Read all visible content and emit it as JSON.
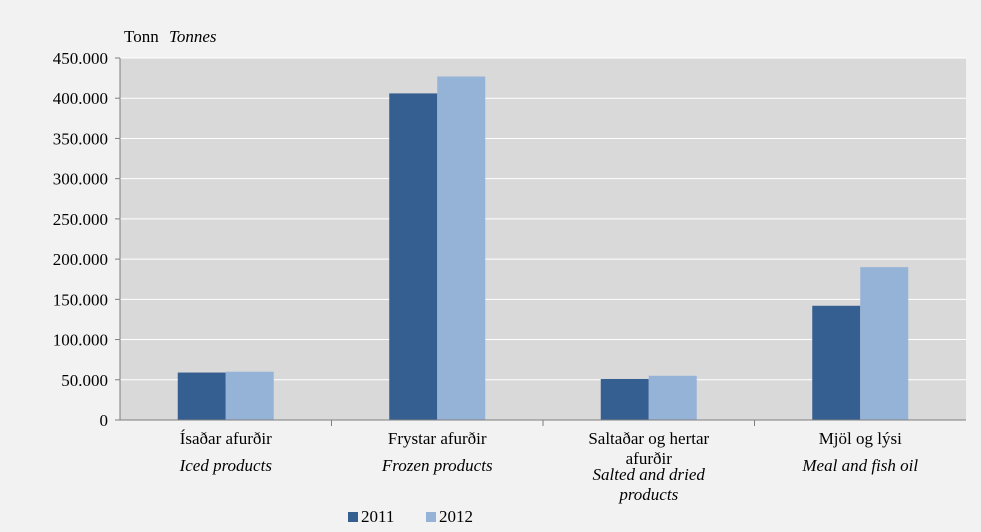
{
  "chart_data": {
    "type": "bar",
    "unit_label": {
      "is": "Tonn",
      "en": "Tonnes"
    },
    "categories": [
      {
        "is": "Ísaðar afurðir",
        "en": "Iced products"
      },
      {
        "is": "Frystar afurðir",
        "en": "Frozen products"
      },
      {
        "is": [
          "Saltaðar og hertar",
          "afurðir"
        ],
        "en": [
          "Salted and dried",
          "products"
        ]
      },
      {
        "is": "Mjöl og lýsi",
        "en": "Meal and fish oil"
      }
    ],
    "series": [
      {
        "name": "2011",
        "color": "#365f91",
        "values": [
          59000,
          406000,
          51000,
          142000
        ]
      },
      {
        "name": "2012",
        "color": "#95b3d7",
        "values": [
          60000,
          427000,
          55000,
          190000
        ]
      }
    ],
    "ylim": [
      0,
      450000
    ],
    "yticks": [
      {
        "value": 0,
        "label": "0"
      },
      {
        "value": 50000,
        "label": "50.000"
      },
      {
        "value": 100000,
        "label": "100.000"
      },
      {
        "value": 150000,
        "label": "150.000"
      },
      {
        "value": 200000,
        "label": "200.000"
      },
      {
        "value": 250000,
        "label": "250.000"
      },
      {
        "value": 300000,
        "label": "300.000"
      },
      {
        "value": 350000,
        "label": "350.000"
      },
      {
        "value": 400000,
        "label": "400.000"
      },
      {
        "value": 450000,
        "label": "450.000"
      }
    ],
    "grid": true,
    "legend": "bottom-center"
  }
}
